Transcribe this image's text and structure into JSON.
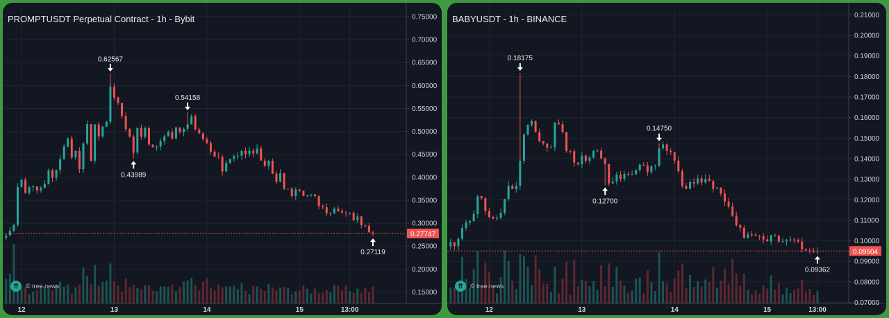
{
  "chart_data": [
    {
      "type": "candlestick",
      "title": "PROMPTUSDT Perpetual Contract - 1h - Bybit",
      "watermark": "© tree.news",
      "colors": {
        "up": "#26a69a",
        "down": "#ef5350",
        "price_line": "#ef5350",
        "grid": "#1f2433",
        "axis_text": "#cfd3dc"
      },
      "ylim": [
        0.125,
        0.765
      ],
      "y_ticks": [
        "0.75000",
        "0.70000",
        "0.65000",
        "0.60000",
        "0.55000",
        "0.50000",
        "0.45000",
        "0.40000",
        "0.35000",
        "0.30000",
        "0.25000",
        "0.20000",
        "0.15000"
      ],
      "x_ticks": [
        {
          "label": "12",
          "t": 4
        },
        {
          "label": "13",
          "t": 28
        },
        {
          "label": "14",
          "t": 52
        },
        {
          "label": "15",
          "t": 76
        },
        {
          "label": "13:00",
          "t": 89
        }
      ],
      "current_price": "0.27747",
      "annotations": [
        {
          "label": "0.62567",
          "t": 27,
          "value": 0.62567,
          "dir": "down"
        },
        {
          "label": "0.54158",
          "t": 47,
          "value": 0.54158,
          "dir": "down"
        },
        {
          "label": "0.43989",
          "t": 33,
          "value": 0.43989,
          "dir": "up"
        },
        {
          "label": "0.27119",
          "t": 95,
          "value": 0.27119,
          "dir": "up"
        }
      ],
      "close_path": [
        0.27,
        0.28,
        0.3,
        0.38,
        0.39,
        0.37,
        0.38,
        0.38,
        0.37,
        0.38,
        0.39,
        0.41,
        0.4,
        0.42,
        0.44,
        0.47,
        0.49,
        0.44,
        0.46,
        0.42,
        0.48,
        0.51,
        0.44,
        0.51,
        0.49,
        0.515,
        0.52,
        0.6,
        0.57,
        0.56,
        0.54,
        0.51,
        0.49,
        0.46,
        0.5,
        0.49,
        0.505,
        0.47,
        0.46,
        0.47,
        0.48,
        0.49,
        0.5,
        0.48,
        0.51,
        0.5,
        0.51,
        0.52,
        0.53,
        0.51,
        0.5,
        0.48,
        0.47,
        0.45,
        0.44,
        0.44,
        0.41,
        0.43,
        0.44,
        0.44,
        0.45,
        0.46,
        0.455,
        0.46,
        0.45,
        0.46,
        0.44,
        0.42,
        0.43,
        0.41,
        0.39,
        0.41,
        0.38,
        0.37,
        0.36,
        0.37,
        0.37,
        0.36,
        0.365,
        0.36,
        0.355,
        0.34,
        0.33,
        0.325,
        0.32,
        0.33,
        0.325,
        0.32,
        0.325,
        0.32,
        0.31,
        0.31,
        0.3,
        0.29,
        0.28,
        0.277
      ],
      "volume_path": [
        0.3,
        0.6,
        0.9,
        0.4,
        0.3,
        0.25,
        0.2,
        0.2,
        0.25,
        0.3,
        0.2,
        0.3,
        0.25,
        0.2,
        0.3,
        0.35,
        0.3,
        0.2,
        0.25,
        0.3,
        0.4,
        0.35,
        0.3,
        0.5,
        0.3,
        0.25,
        0.3,
        0.55,
        0.4,
        0.3,
        0.25,
        0.3,
        0.35,
        0.4,
        0.3,
        0.25,
        0.2,
        0.25,
        0.2,
        0.2,
        0.25,
        0.2,
        0.25,
        0.3,
        0.25,
        0.2,
        0.3,
        0.35,
        0.3,
        0.25,
        0.2,
        0.25,
        0.3,
        0.25,
        0.2,
        0.25,
        0.2,
        0.2,
        0.25,
        0.2,
        0.2,
        0.25,
        0.2,
        0.2,
        0.2,
        0.25,
        0.2,
        0.2,
        0.25,
        0.2,
        0.2,
        0.25,
        0.2,
        0.2,
        0.2,
        0.2,
        0.2,
        0.2,
        0.2,
        0.2,
        0.2,
        0.2,
        0.2,
        0.2,
        0.2,
        0.2,
        0.2,
        0.2,
        0.2,
        0.2,
        0.2,
        0.2,
        0.2,
        0.2,
        0.2,
        0.2
      ]
    },
    {
      "type": "candlestick",
      "title": "BABYUSDT - 1h - BINANCE",
      "watermark": "© tree.news",
      "colors": {
        "up": "#26a69a",
        "down": "#ef5350",
        "price_line": "#ef5350",
        "grid": "#1f2433",
        "axis_text": "#cfd3dc"
      },
      "ylim": [
        0.0695,
        0.2125
      ],
      "y_ticks": [
        "0.21000",
        "0.20000",
        "0.19000",
        "0.18000",
        "0.17000",
        "0.16000",
        "0.15000",
        "0.14000",
        "0.13000",
        "0.12000",
        "0.11000",
        "0.10000",
        "0.09000",
        "0.08000",
        "0.07000"
      ],
      "x_ticks": [
        {
          "label": "12",
          "t": 10
        },
        {
          "label": "13",
          "t": 34
        },
        {
          "label": "14",
          "t": 58
        },
        {
          "label": "15",
          "t": 82
        },
        {
          "label": "13:00",
          "t": 95
        }
      ],
      "current_price": "0.09504",
      "annotations": [
        {
          "label": "0.18175",
          "t": 18,
          "value": 0.18175,
          "dir": "down"
        },
        {
          "label": "0.14750",
          "t": 54,
          "value": 0.1475,
          "dir": "down"
        },
        {
          "label": "0.12700",
          "t": 40,
          "value": 0.127,
          "dir": "up"
        },
        {
          "label": "0.09362",
          "t": 95,
          "value": 0.09362,
          "dir": "up"
        }
      ],
      "close_path": [
        0.098,
        0.096,
        0.101,
        0.109,
        0.108,
        0.112,
        0.125,
        0.118,
        0.11,
        0.112,
        0.11,
        0.112,
        0.12,
        0.128,
        0.125,
        0.136,
        0.15,
        0.16,
        0.158,
        0.15,
        0.146,
        0.148,
        0.145,
        0.16,
        0.155,
        0.147,
        0.142,
        0.138,
        0.139,
        0.14,
        0.141,
        0.142,
        0.145,
        0.142,
        0.132,
        0.127,
        0.13,
        0.131,
        0.132,
        0.135,
        0.134,
        0.136,
        0.135,
        0.134,
        0.137,
        0.139,
        0.147,
        0.145,
        0.143,
        0.138,
        0.13,
        0.123,
        0.126,
        0.128,
        0.13,
        0.129,
        0.13,
        0.127,
        0.126,
        0.125,
        0.12,
        0.115,
        0.11,
        0.105,
        0.103,
        0.104,
        0.103,
        0.102,
        0.102,
        0.101,
        0.103,
        0.101,
        0.1,
        0.1,
        0.101,
        0.099,
        0.098,
        0.097,
        0.096,
        0.095,
        0.095
      ]
    }
  ]
}
